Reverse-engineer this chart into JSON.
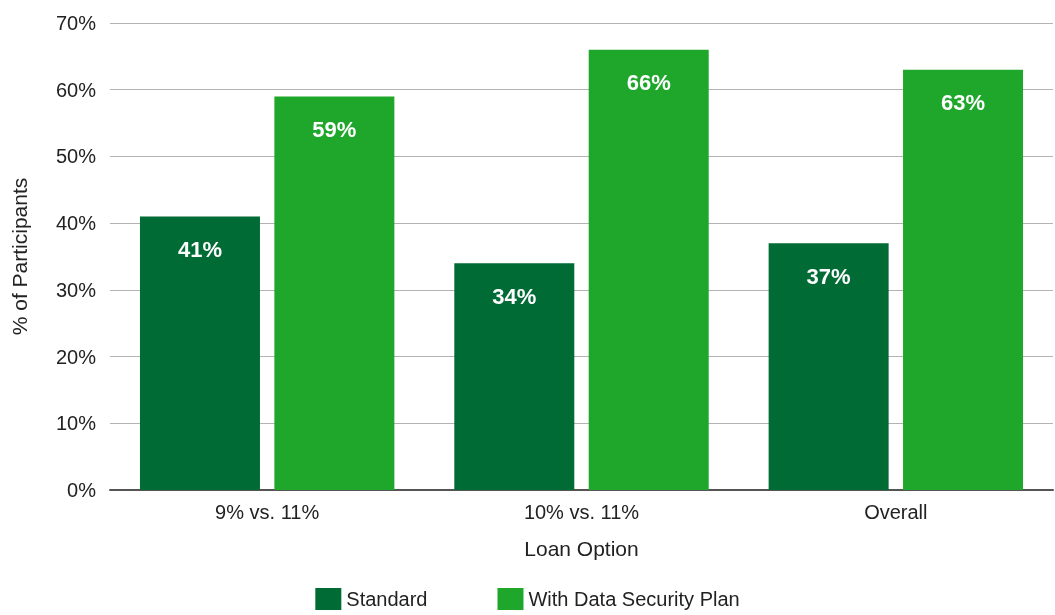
{
  "chart_data": {
    "type": "bar",
    "xlabel": "Loan Option",
    "ylabel": "% of Participants",
    "categories": [
      "9% vs. 11%",
      "10% vs. 11%",
      "Overall"
    ],
    "series": [
      {
        "name": "Standard",
        "color": "#006b35",
        "values": [
          41,
          34,
          37
        ],
        "value_labels": [
          "41%",
          "34%",
          "37%"
        ]
      },
      {
        "name": "With Data Security Plan",
        "color": "#1ea72b",
        "values": [
          59,
          66,
          63
        ],
        "value_labels": [
          "59%",
          "66%",
          "63%"
        ]
      }
    ],
    "ylim": [
      0,
      70
    ],
    "yticks": [
      {
        "value": 0,
        "label": "0%"
      },
      {
        "value": 10,
        "label": "10%"
      },
      {
        "value": 20,
        "label": "20%"
      },
      {
        "value": 30,
        "label": "30%"
      },
      {
        "value": 40,
        "label": "40%"
      },
      {
        "value": 50,
        "label": "50%"
      },
      {
        "value": 60,
        "label": "60%"
      },
      {
        "value": 70,
        "label": "70%"
      }
    ],
    "grid": "y",
    "legend": "bottom"
  }
}
